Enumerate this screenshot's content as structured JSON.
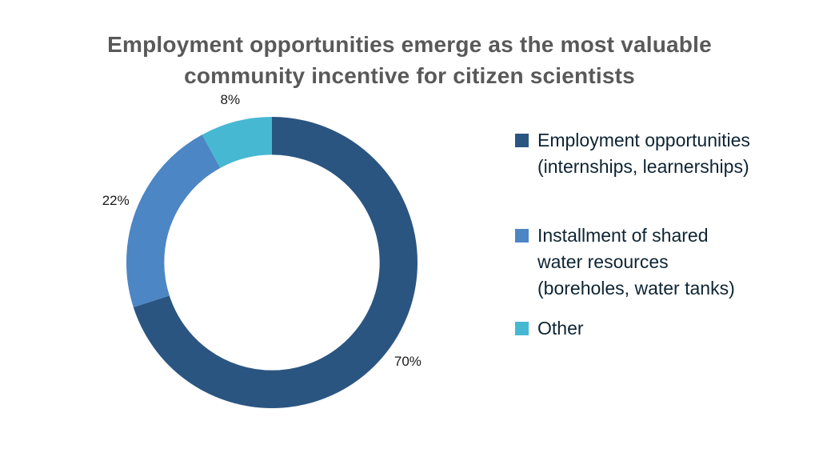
{
  "header": {
    "title_lines": [
      "Employment opportunities emerge as the most valuable",
      "community incentive for citizen scientists"
    ]
  },
  "chart_data": {
    "type": "pie",
    "subtype": "donut",
    "title": "Employment opportunities emerge as the most valuable community incentive for citizen scientists",
    "unit": "%",
    "start_angle_deg": 0,
    "direction": "clockwise",
    "legend_position": "right",
    "hole_ratio": 0.74,
    "grid": false,
    "slices": [
      {
        "label": "Employment opportunities (internships, learnerships)",
        "legend_lines": [
          "Employment opportunities",
          "(internships, learnerships)"
        ],
        "value": 70,
        "pct_label": "70%",
        "color": "#2B5581"
      },
      {
        "label": "Installment of shared water resources (boreholes, water tanks)",
        "legend_lines": [
          "Installment of shared",
          "water resources",
          "(boreholes, water tanks)"
        ],
        "value": 22,
        "pct_label": "22%",
        "color": "#4C86C4"
      },
      {
        "label": "Other",
        "legend_lines": [
          "Other"
        ],
        "value": 8,
        "pct_label": "8%",
        "color": "#47B8D2"
      }
    ],
    "style_colors": {
      "title_text": "#595959",
      "legend_text": "#0E2433",
      "percent_label_text": "#1A1A1A",
      "background": "#FFFFFF"
    }
  }
}
